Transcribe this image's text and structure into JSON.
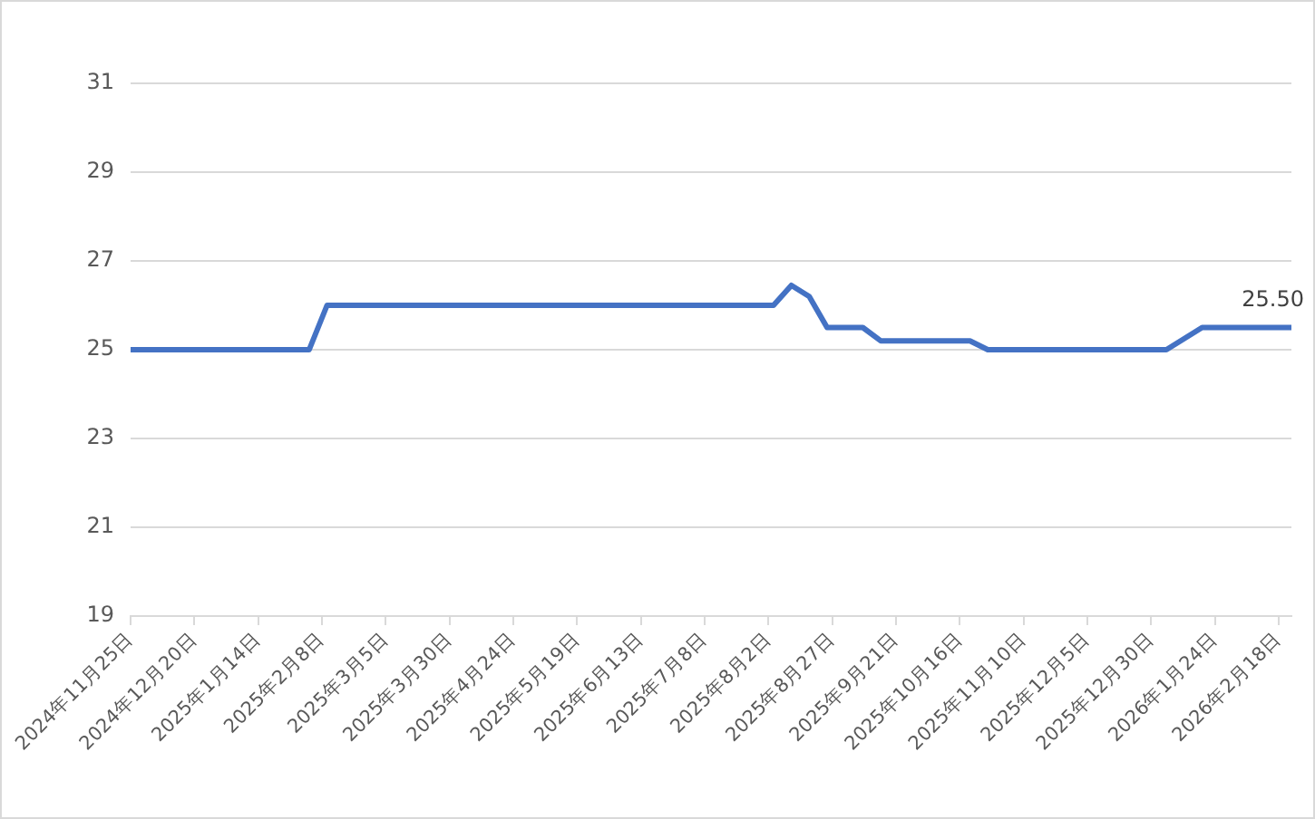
{
  "chart_data": {
    "type": "line",
    "x": [
      "2024-11-25",
      "2024-12-02",
      "2024-12-09",
      "2024-12-16",
      "2024-12-23",
      "2024-12-30",
      "2025-01-06",
      "2025-01-13",
      "2025-01-20",
      "2025-01-27",
      "2025-02-03",
      "2025-02-10",
      "2025-02-17",
      "2025-02-24",
      "2025-03-03",
      "2025-03-10",
      "2025-03-17",
      "2025-03-24",
      "2025-03-31",
      "2025-04-07",
      "2025-04-14",
      "2025-04-21",
      "2025-04-28",
      "2025-05-05",
      "2025-05-12",
      "2025-05-19",
      "2025-05-26",
      "2025-06-02",
      "2025-06-09",
      "2025-06-16",
      "2025-06-23",
      "2025-06-30",
      "2025-07-07",
      "2025-07-14",
      "2025-07-21",
      "2025-07-28",
      "2025-08-04",
      "2025-08-11",
      "2025-08-18",
      "2025-08-25",
      "2025-09-01",
      "2025-09-08",
      "2025-09-15",
      "2025-09-22",
      "2025-09-29",
      "2025-10-06",
      "2025-10-13",
      "2025-10-20",
      "2025-10-27",
      "2025-11-03",
      "2025-11-10",
      "2025-11-17",
      "2025-11-24",
      "2025-12-01",
      "2025-12-08",
      "2025-12-15",
      "2025-12-22",
      "2025-12-29",
      "2026-01-05",
      "2026-01-12",
      "2026-01-19",
      "2026-01-26",
      "2026-02-02",
      "2026-02-09",
      "2026-02-16",
      "2026-02-23"
    ],
    "values": [
      25,
      25,
      25,
      25,
      25,
      25,
      25,
      25,
      25,
      25,
      25,
      26,
      26,
      26,
      26,
      26,
      26,
      26,
      26,
      26,
      26,
      26,
      26,
      26,
      26,
      26,
      26,
      26,
      26,
      26,
      26,
      26,
      26,
      26,
      26,
      26,
      26,
      26.45,
      26.2,
      25.5,
      25.5,
      25.5,
      25.2,
      25.2,
      25.2,
      25.2,
      25.2,
      25.2,
      25,
      25,
      25,
      25,
      25,
      25,
      25,
      25,
      25,
      25,
      25,
      25.25,
      25.5,
      25.5,
      25.5,
      25.5,
      25.5,
      25.5
    ],
    "value_labels": [
      null,
      null,
      null,
      null,
      null,
      null,
      null,
      null,
      null,
      null,
      null,
      null,
      null,
      null,
      null,
      null,
      null,
      null,
      null,
      null,
      null,
      null,
      null,
      null,
      null,
      null,
      null,
      null,
      null,
      null,
      null,
      null,
      null,
      null,
      null,
      null,
      null,
      null,
      null,
      null,
      null,
      null,
      null,
      null,
      null,
      null,
      null,
      null,
      null,
      null,
      null,
      null,
      null,
      null,
      null,
      null,
      null,
      null,
      null,
      null,
      null,
      null,
      null,
      null,
      null,
      "25.50"
    ],
    "color": "#4472c4",
    "xlim": [
      "2024-11-25",
      "2026-02-23"
    ],
    "xticks": [
      {
        "value": "2024-11-25",
        "label": "2024年11月25日"
      },
      {
        "value": "2024-12-20",
        "label": "2024年12月20日"
      },
      {
        "value": "2025-01-14",
        "label": "2025年1月14日"
      },
      {
        "value": "2025-02-08",
        "label": "2025年2月8日"
      },
      {
        "value": "2025-03-05",
        "label": "2025年3月5日"
      },
      {
        "value": "2025-03-30",
        "label": "2025年3月30日"
      },
      {
        "value": "2025-04-24",
        "label": "2025年4月24日"
      },
      {
        "value": "2025-05-19",
        "label": "2025年5月19日"
      },
      {
        "value": "2025-06-13",
        "label": "2025年6月13日"
      },
      {
        "value": "2025-07-08",
        "label": "2025年7月8日"
      },
      {
        "value": "2025-08-02",
        "label": "2025年8月2日"
      },
      {
        "value": "2025-08-27",
        "label": "2025年8月27日"
      },
      {
        "value": "2025-09-21",
        "label": "2025年9月21日"
      },
      {
        "value": "2025-10-16",
        "label": "2025年10月16日"
      },
      {
        "value": "2025-11-10",
        "label": "2025年11月10日"
      },
      {
        "value": "2025-12-05",
        "label": "2025年12月5日"
      },
      {
        "value": "2025-12-30",
        "label": "2025年12月30日"
      },
      {
        "value": "2026-01-24",
        "label": "2026年1月24日"
      },
      {
        "value": "2026-02-18",
        "label": "2026年2月18日"
      }
    ],
    "ylim": [
      19,
      31
    ],
    "yticks": [
      19,
      21,
      23,
      25,
      27,
      29,
      31
    ],
    "grid": "y",
    "legend": false,
    "marker": "none",
    "line_style": "solid"
  }
}
